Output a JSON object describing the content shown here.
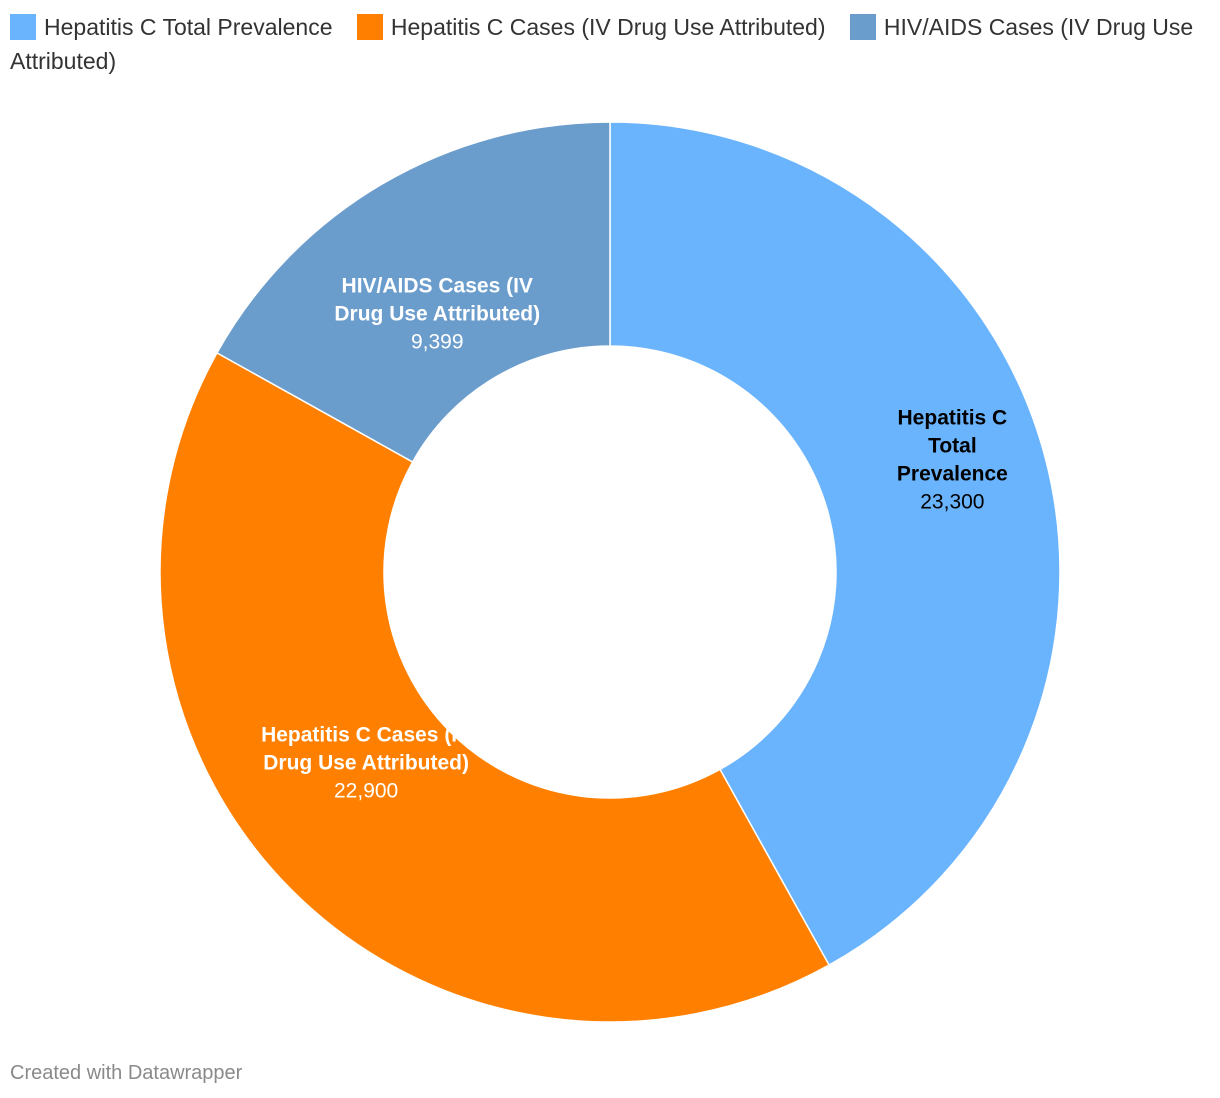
{
  "chart_data": {
    "type": "pie",
    "style": "donut",
    "series": [
      {
        "name": "Hepatitis C Total Prevalence",
        "value": 23300,
        "value_label": "23,300",
        "color": "#6ab3fd",
        "label_lines": [
          "Hepatitis C",
          "Total",
          "Prevalence"
        ],
        "label_color": "#000000"
      },
      {
        "name": "Hepatitis C Cases (IV Drug Use Attributed)",
        "value": 22900,
        "value_label": "22,900",
        "color": "#ff8000",
        "label_lines": [
          "Hepatitis C Cases (IV",
          "Drug Use Attributed)"
        ],
        "label_color": "#ffffff"
      },
      {
        "name": "HIV/AIDS Cases (IV Drug Use Attributed)",
        "value": 9399,
        "value_label": "9,399",
        "color": "#6a9ccc",
        "label_lines": [
          "HIV/AIDS Cases (IV",
          "Drug Use Attributed)"
        ],
        "label_color": "#ffffff"
      }
    ],
    "legend": "top"
  },
  "footer": {
    "credit": "Created with Datawrapper"
  }
}
